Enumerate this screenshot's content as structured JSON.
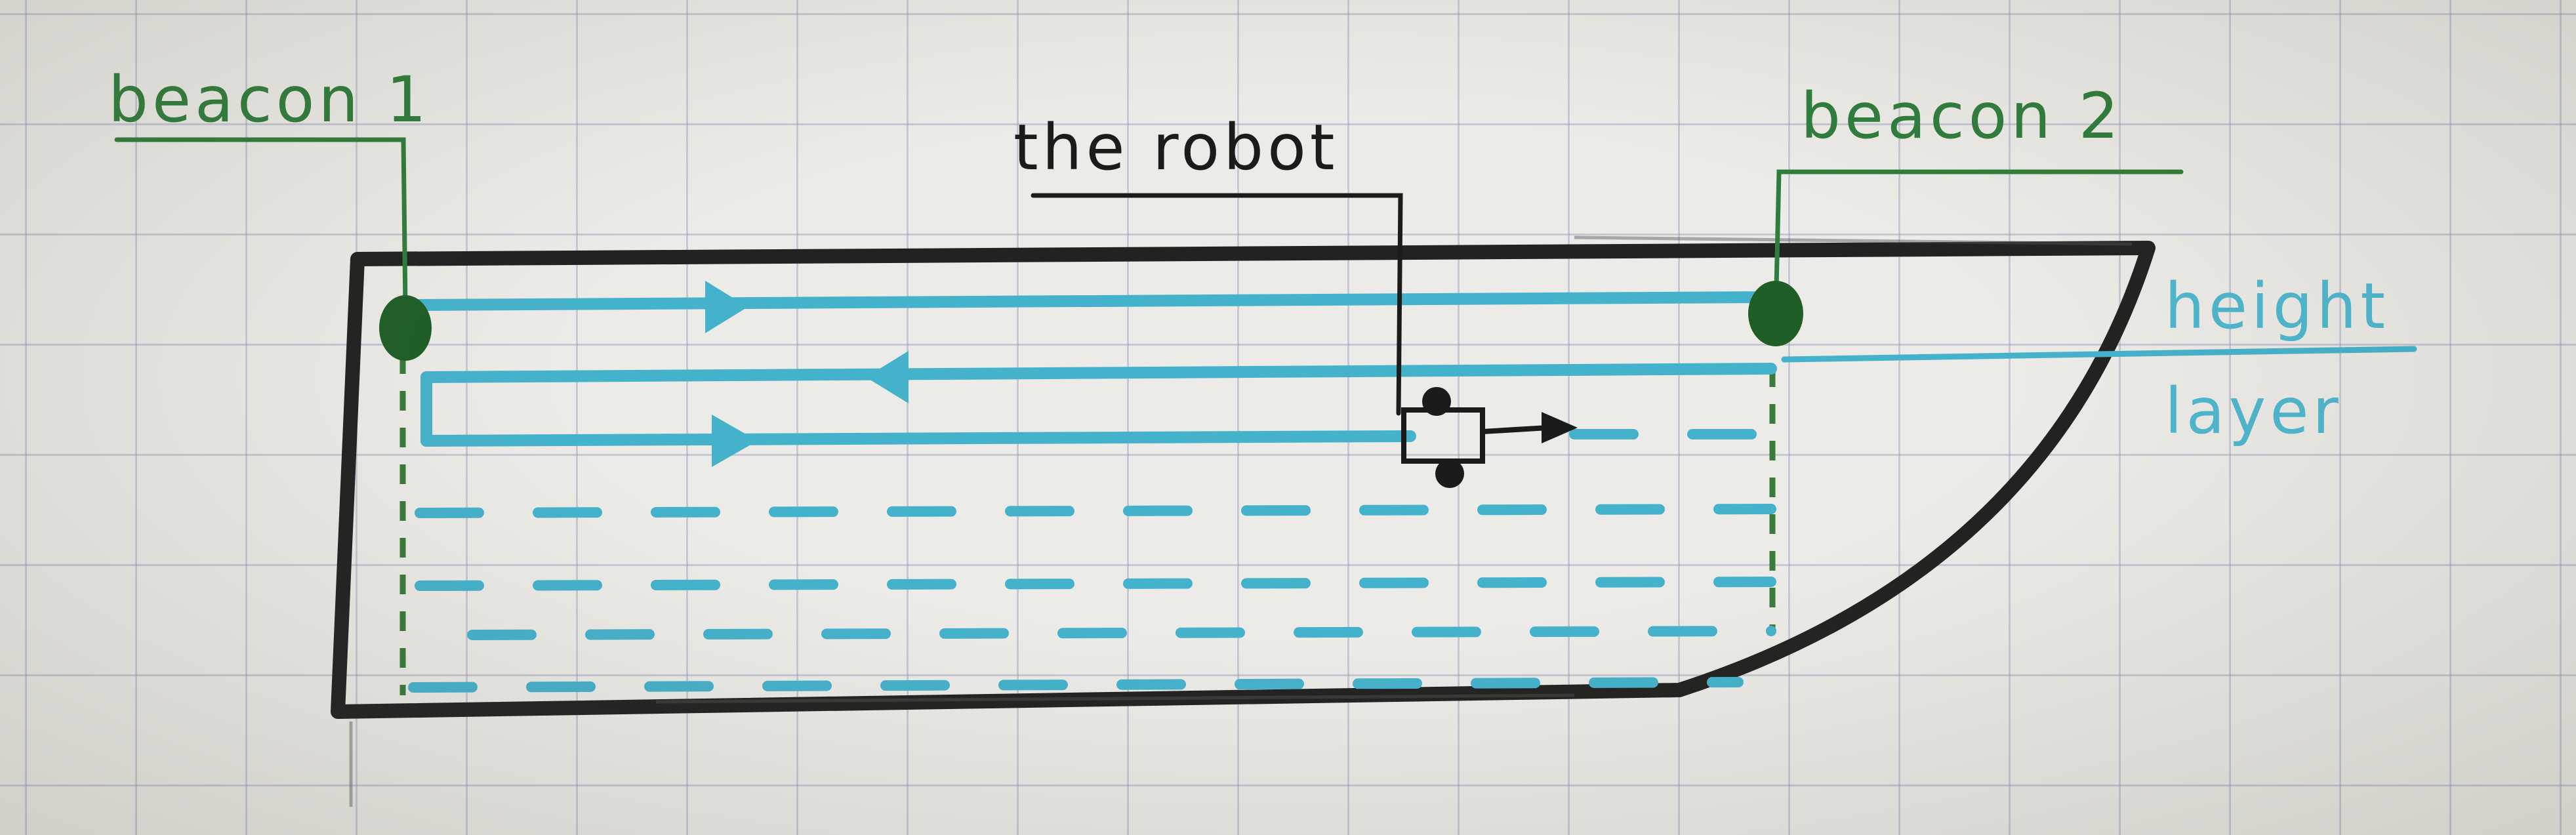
{
  "labels": {
    "beacon1": "beacon 1",
    "beacon2": "beacon 2",
    "robot": "the robot",
    "height_line1": "height",
    "height_line2": "layer"
  },
  "colors": {
    "outline": "#1f1f1f",
    "beacon": "#2f7d3c",
    "path": "#45b2cc",
    "grid": "#969ebe"
  }
}
